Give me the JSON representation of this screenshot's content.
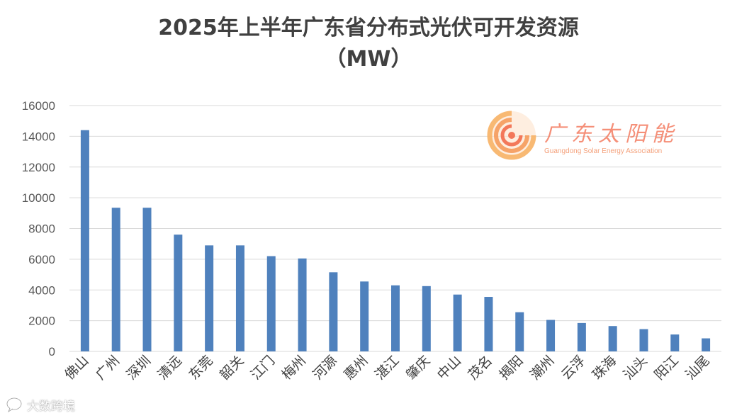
{
  "chart_data": {
    "type": "bar",
    "title_line1": "2025年上半年广东省分布式光伏可开发资源",
    "title_line2": "（MW）",
    "categories": [
      "佛山",
      "广州",
      "深圳",
      "清远",
      "东莞",
      "韶关",
      "江门",
      "梅州",
      "河源",
      "惠州",
      "湛江",
      "肇庆",
      "中山",
      "茂名",
      "揭阳",
      "潮州",
      "云浮",
      "珠海",
      "汕头",
      "阳江",
      "汕尾"
    ],
    "values": [
      14400,
      9350,
      9350,
      7600,
      6900,
      6900,
      6200,
      6050,
      5150,
      4550,
      4300,
      4250,
      3700,
      3550,
      2550,
      2050,
      1850,
      1650,
      1450,
      1100,
      850
    ],
    "ylim": [
      0,
      16000
    ],
    "yticks": [
      0,
      2000,
      4000,
      6000,
      8000,
      10000,
      12000,
      14000,
      16000
    ],
    "grid": true,
    "bar_color": "#4f81bd",
    "grid_color": "#d9d9d9"
  },
  "logo": {
    "name": "广东太阳能",
    "subtitle": "Guangdong Solar Energy Association",
    "colors": [
      "#f7b267",
      "#f26a4b"
    ]
  },
  "watermark": {
    "text": "大数跨境",
    "icon": "chat-bubble-icon"
  }
}
